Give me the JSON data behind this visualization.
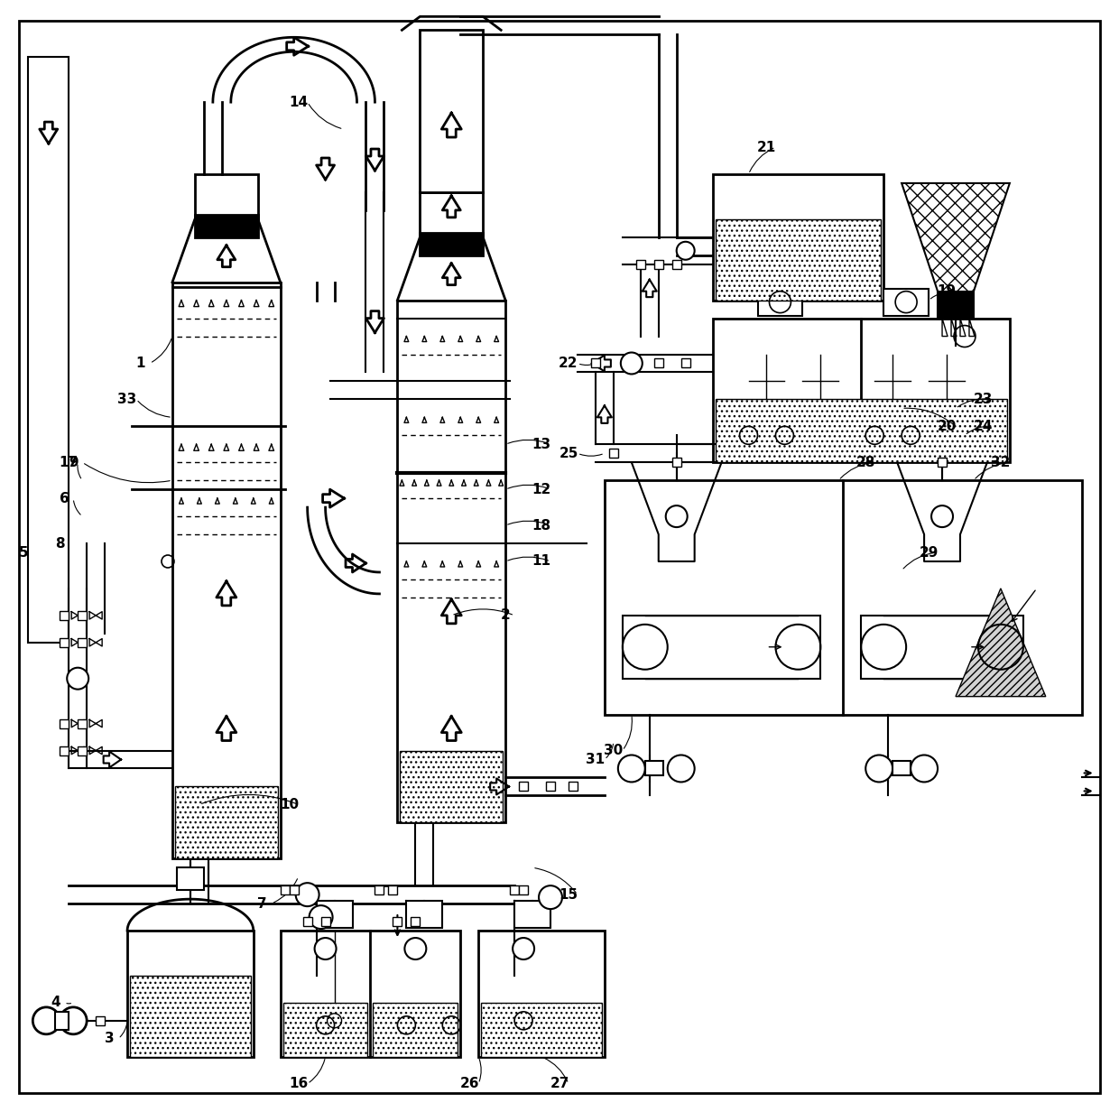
{
  "bg_color": "#ffffff",
  "lw": 1.5,
  "lw_thick": 2.5,
  "figsize": [
    12.4,
    12.32
  ],
  "dpi": 100
}
